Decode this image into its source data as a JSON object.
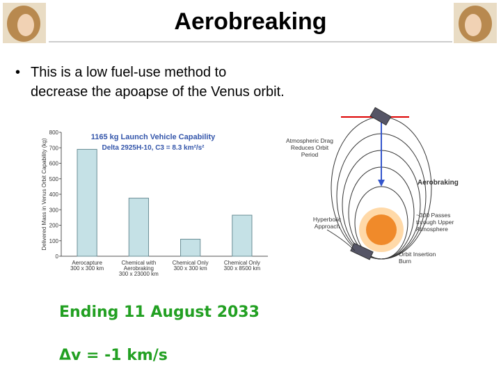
{
  "slide": {
    "title": "Aerobreaking",
    "bullet": "This is a low fuel-use method to decrease the apoapse of the Venus orbit.",
    "notes": [
      "Ending 11 August 2033",
      "Δv = -1 km/s"
    ]
  },
  "chart_data": {
    "type": "bar",
    "title": "1165 kg Launch Vehicle Capability",
    "subtitle": "Delta 2925H-10, C3 = 8.3 km²/s²",
    "y_label": "Delivered Mass in Venus Orbit Capability (kg)",
    "categories": [
      [
        "Aerocapture",
        "300 x 300 km"
      ],
      [
        "Chemical with",
        "Aerobraking",
        "300 x 23000 km"
      ],
      [
        "Chemical Only",
        "300 x 300 km"
      ],
      [
        "Chemical Only",
        "300 x 8500 km"
      ]
    ],
    "values": [
      690,
      375,
      110,
      265
    ],
    "color": "#c5e1e6",
    "ylim": [
      0,
      800
    ],
    "yticks": [
      0,
      100,
      200,
      300,
      400,
      500,
      600,
      700,
      800
    ]
  },
  "diagram": {
    "labels": [
      [
        "Atmospheric Drag",
        "Reduces Orbit",
        "Period"
      ],
      [
        "Aerobraking"
      ],
      [
        "Hyperbolic",
        "Approach"
      ],
      [
        "~300 Passes",
        "through Upper",
        "Atmosphere"
      ],
      [
        "Orbit Insertion",
        "Burn"
      ]
    ]
  }
}
